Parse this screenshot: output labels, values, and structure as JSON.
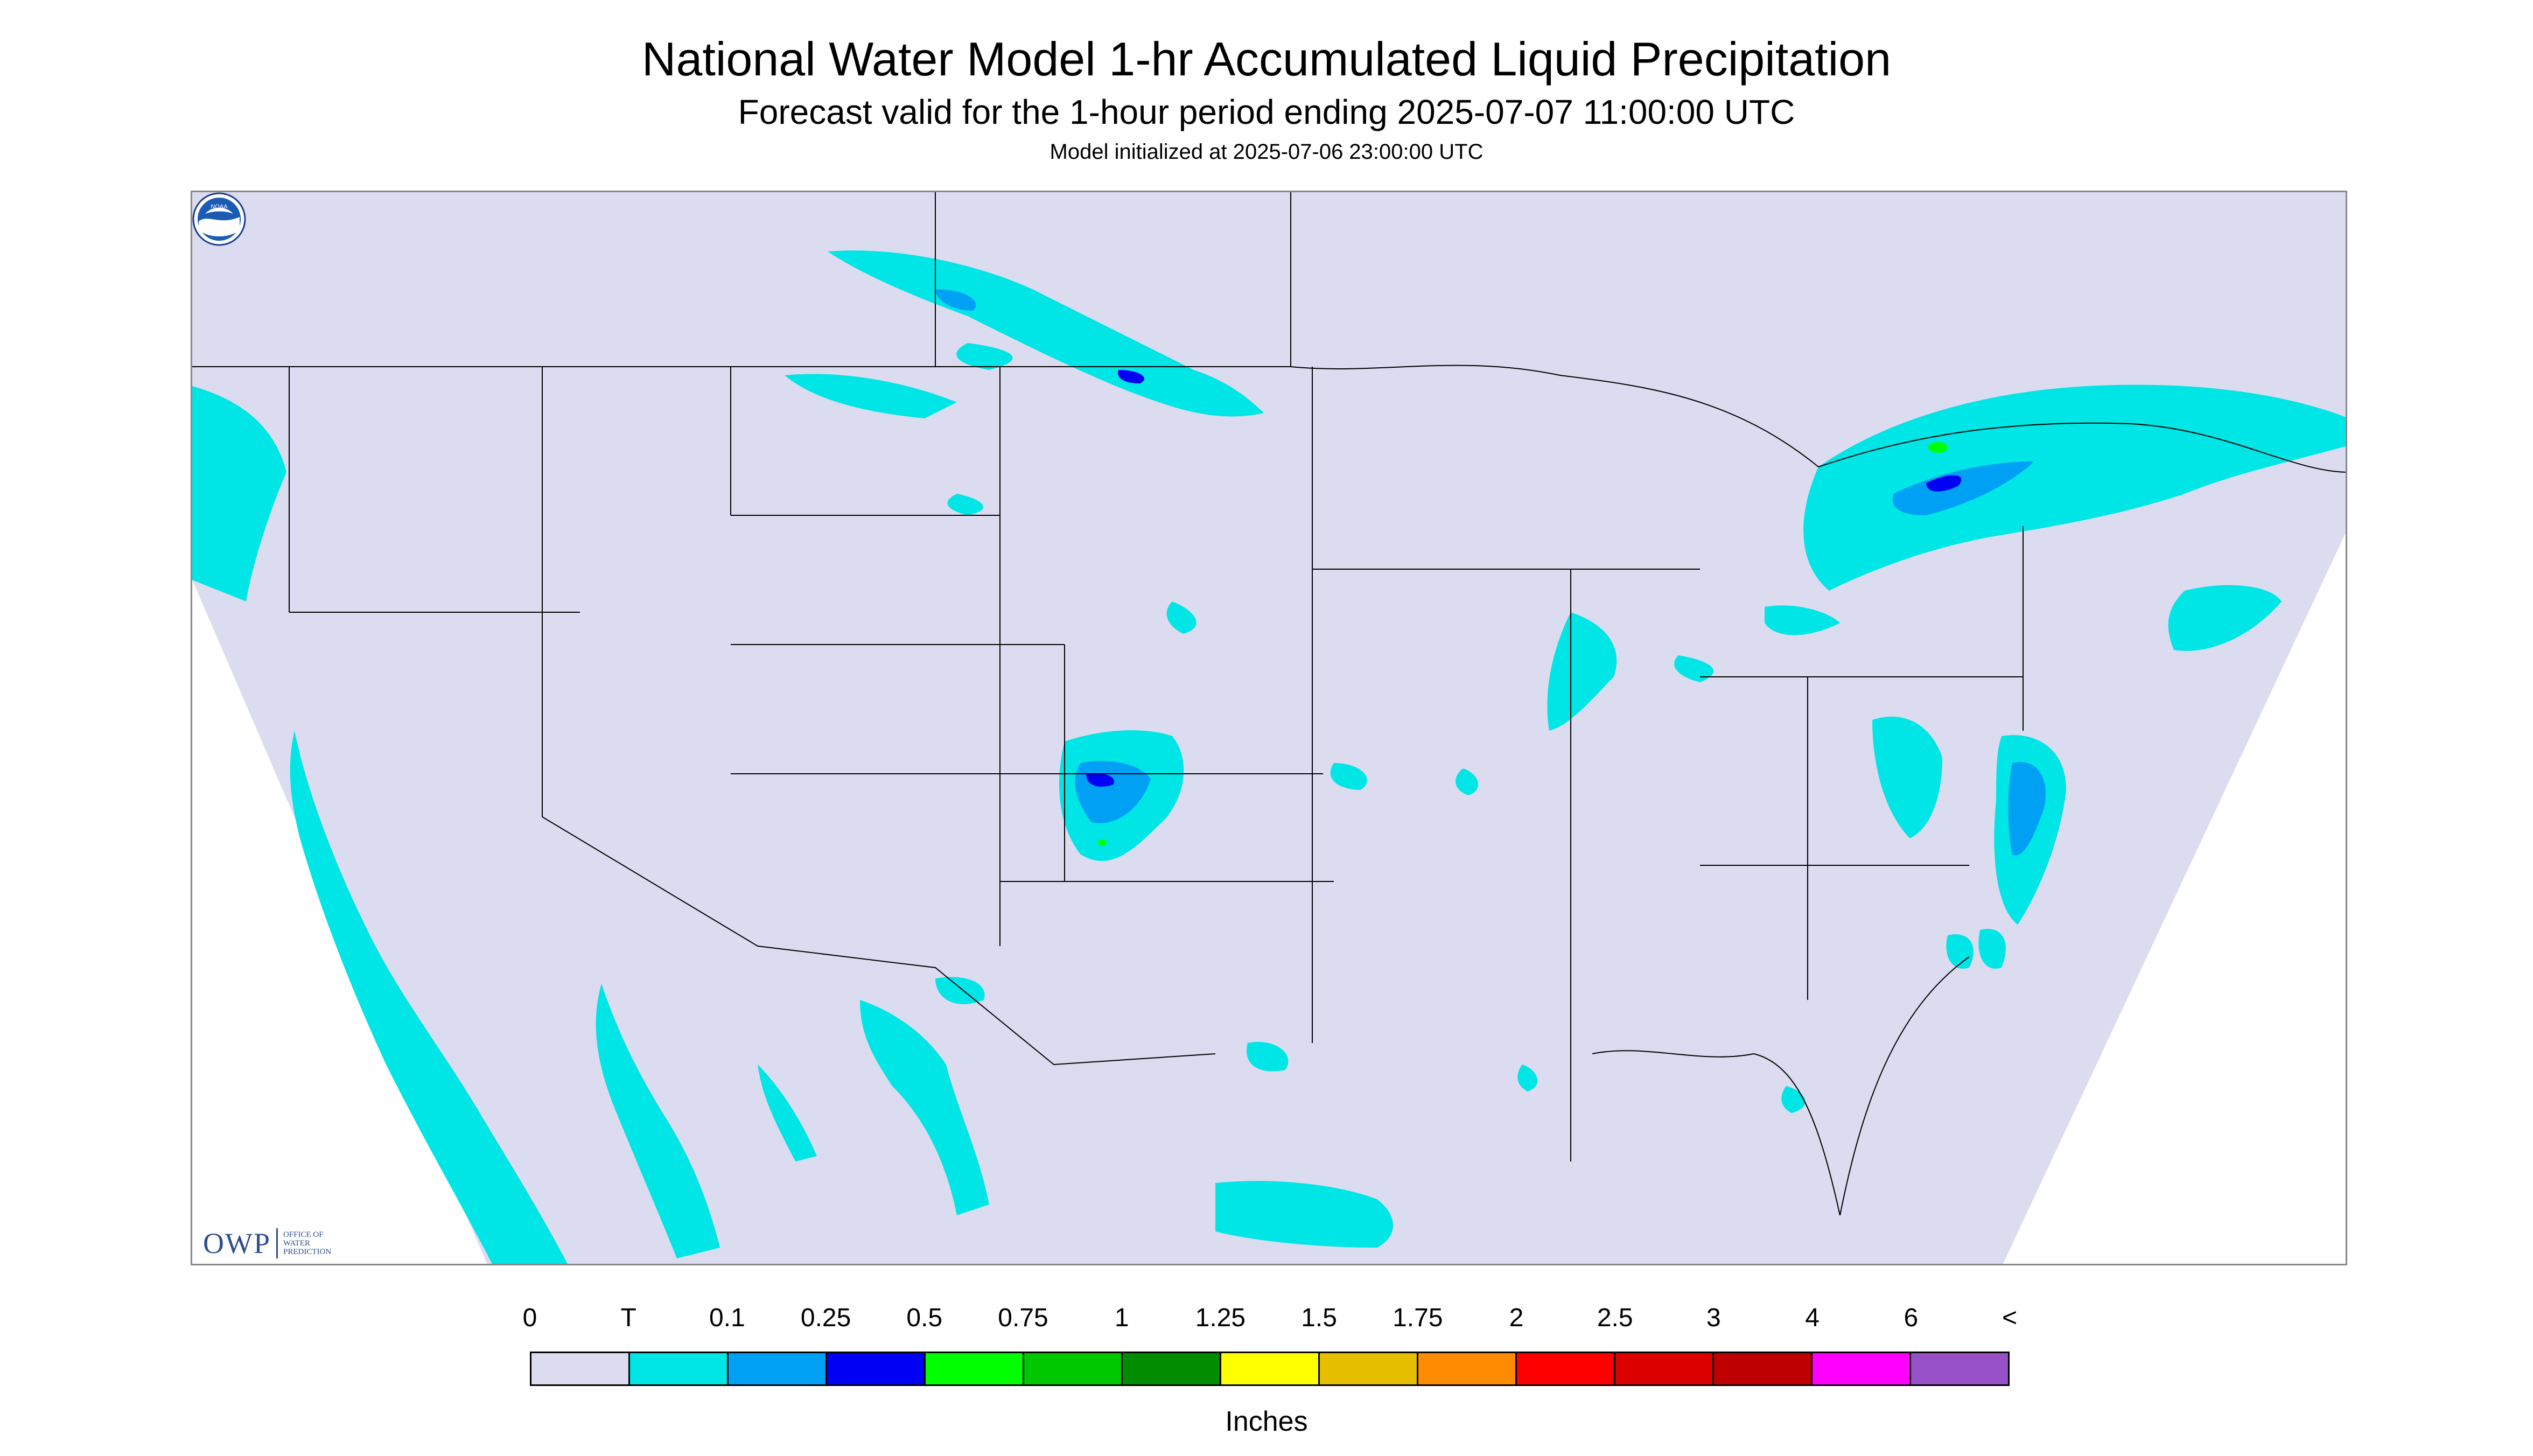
{
  "title": "National Water Model 1-hr Accumulated Liquid Precipitation",
  "subtitle": "Forecast valid for the 1-hour period ending 2025-07-07 11:00:00 UTC",
  "model_init": "Model initialized at 2025-07-06 23:00:00 UTC",
  "colors": {
    "background_land": "#dcdcf0",
    "trace": "#00e5e5",
    "boundary": "#000000",
    "frame": "#8a8a8a"
  },
  "logo_owp": {
    "letters": "OWP",
    "words": [
      "OFFICE OF",
      "WATER",
      "PREDICTION"
    ]
  },
  "logo_noaa": {
    "text": "NOAA",
    "icon": "noaa-seal-icon"
  },
  "legend": {
    "units": "Inches",
    "labels": [
      "0",
      "T",
      "0.1",
      "0.25",
      "0.5",
      "0.75",
      "1",
      "1.25",
      "1.5",
      "1.75",
      "2",
      "2.5",
      "3",
      "4",
      "6",
      "<"
    ],
    "colors": [
      "#dcdcf0",
      "#00e5e5",
      "#00a0f5",
      "#0000f5",
      "#00ff00",
      "#00c800",
      "#008c00",
      "#ffff00",
      "#e6be00",
      "#ff8c00",
      "#ff0000",
      "#dc0000",
      "#be0000",
      "#ff00ff",
      "#9650c8"
    ]
  }
}
